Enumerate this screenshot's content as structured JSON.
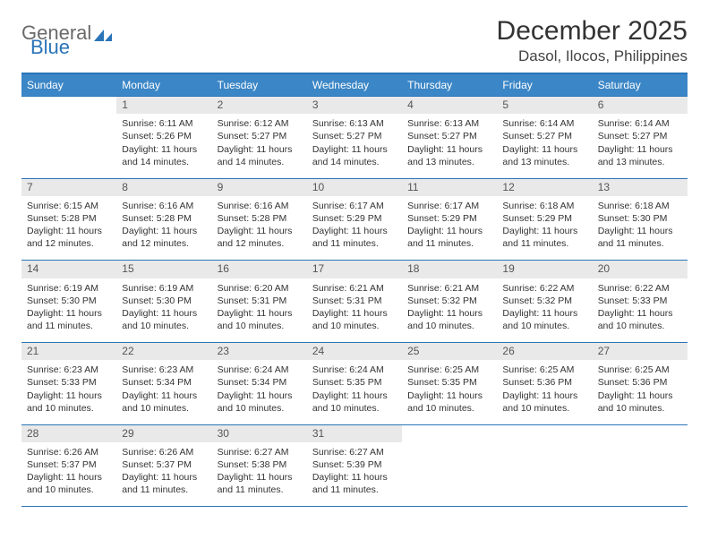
{
  "brand": {
    "general": "General",
    "blue": "Blue"
  },
  "header": {
    "month_title": "December 2025",
    "location": "Dasol, Ilocos, Philippines"
  },
  "weekdays": [
    "Sunday",
    "Monday",
    "Tuesday",
    "Wednesday",
    "Thursday",
    "Friday",
    "Saturday"
  ],
  "colors": {
    "header_bg": "#3b86c6",
    "accent": "#2a74b8",
    "daynum_bg": "#e9e9e9",
    "text": "#333333"
  },
  "calendar": {
    "start_weekday": 1,
    "days_in_month": 31,
    "days": {
      "1": {
        "sunrise": "6:11 AM",
        "sunset": "5:26 PM",
        "daylight": "11 hours and 14 minutes."
      },
      "2": {
        "sunrise": "6:12 AM",
        "sunset": "5:27 PM",
        "daylight": "11 hours and 14 minutes."
      },
      "3": {
        "sunrise": "6:13 AM",
        "sunset": "5:27 PM",
        "daylight": "11 hours and 14 minutes."
      },
      "4": {
        "sunrise": "6:13 AM",
        "sunset": "5:27 PM",
        "daylight": "11 hours and 13 minutes."
      },
      "5": {
        "sunrise": "6:14 AM",
        "sunset": "5:27 PM",
        "daylight": "11 hours and 13 minutes."
      },
      "6": {
        "sunrise": "6:14 AM",
        "sunset": "5:27 PM",
        "daylight": "11 hours and 13 minutes."
      },
      "7": {
        "sunrise": "6:15 AM",
        "sunset": "5:28 PM",
        "daylight": "11 hours and 12 minutes."
      },
      "8": {
        "sunrise": "6:16 AM",
        "sunset": "5:28 PM",
        "daylight": "11 hours and 12 minutes."
      },
      "9": {
        "sunrise": "6:16 AM",
        "sunset": "5:28 PM",
        "daylight": "11 hours and 12 minutes."
      },
      "10": {
        "sunrise": "6:17 AM",
        "sunset": "5:29 PM",
        "daylight": "11 hours and 11 minutes."
      },
      "11": {
        "sunrise": "6:17 AM",
        "sunset": "5:29 PM",
        "daylight": "11 hours and 11 minutes."
      },
      "12": {
        "sunrise": "6:18 AM",
        "sunset": "5:29 PM",
        "daylight": "11 hours and 11 minutes."
      },
      "13": {
        "sunrise": "6:18 AM",
        "sunset": "5:30 PM",
        "daylight": "11 hours and 11 minutes."
      },
      "14": {
        "sunrise": "6:19 AM",
        "sunset": "5:30 PM",
        "daylight": "11 hours and 11 minutes."
      },
      "15": {
        "sunrise": "6:19 AM",
        "sunset": "5:30 PM",
        "daylight": "11 hours and 10 minutes."
      },
      "16": {
        "sunrise": "6:20 AM",
        "sunset": "5:31 PM",
        "daylight": "11 hours and 10 minutes."
      },
      "17": {
        "sunrise": "6:21 AM",
        "sunset": "5:31 PM",
        "daylight": "11 hours and 10 minutes."
      },
      "18": {
        "sunrise": "6:21 AM",
        "sunset": "5:32 PM",
        "daylight": "11 hours and 10 minutes."
      },
      "19": {
        "sunrise": "6:22 AM",
        "sunset": "5:32 PM",
        "daylight": "11 hours and 10 minutes."
      },
      "20": {
        "sunrise": "6:22 AM",
        "sunset": "5:33 PM",
        "daylight": "11 hours and 10 minutes."
      },
      "21": {
        "sunrise": "6:23 AM",
        "sunset": "5:33 PM",
        "daylight": "11 hours and 10 minutes."
      },
      "22": {
        "sunrise": "6:23 AM",
        "sunset": "5:34 PM",
        "daylight": "11 hours and 10 minutes."
      },
      "23": {
        "sunrise": "6:24 AM",
        "sunset": "5:34 PM",
        "daylight": "11 hours and 10 minutes."
      },
      "24": {
        "sunrise": "6:24 AM",
        "sunset": "5:35 PM",
        "daylight": "11 hours and 10 minutes."
      },
      "25": {
        "sunrise": "6:25 AM",
        "sunset": "5:35 PM",
        "daylight": "11 hours and 10 minutes."
      },
      "26": {
        "sunrise": "6:25 AM",
        "sunset": "5:36 PM",
        "daylight": "11 hours and 10 minutes."
      },
      "27": {
        "sunrise": "6:25 AM",
        "sunset": "5:36 PM",
        "daylight": "11 hours and 10 minutes."
      },
      "28": {
        "sunrise": "6:26 AM",
        "sunset": "5:37 PM",
        "daylight": "11 hours and 10 minutes."
      },
      "29": {
        "sunrise": "6:26 AM",
        "sunset": "5:37 PM",
        "daylight": "11 hours and 11 minutes."
      },
      "30": {
        "sunrise": "6:27 AM",
        "sunset": "5:38 PM",
        "daylight": "11 hours and 11 minutes."
      },
      "31": {
        "sunrise": "6:27 AM",
        "sunset": "5:39 PM",
        "daylight": "11 hours and 11 minutes."
      }
    },
    "labels": {
      "sunrise": "Sunrise:",
      "sunset": "Sunset:",
      "daylight": "Daylight:"
    }
  }
}
